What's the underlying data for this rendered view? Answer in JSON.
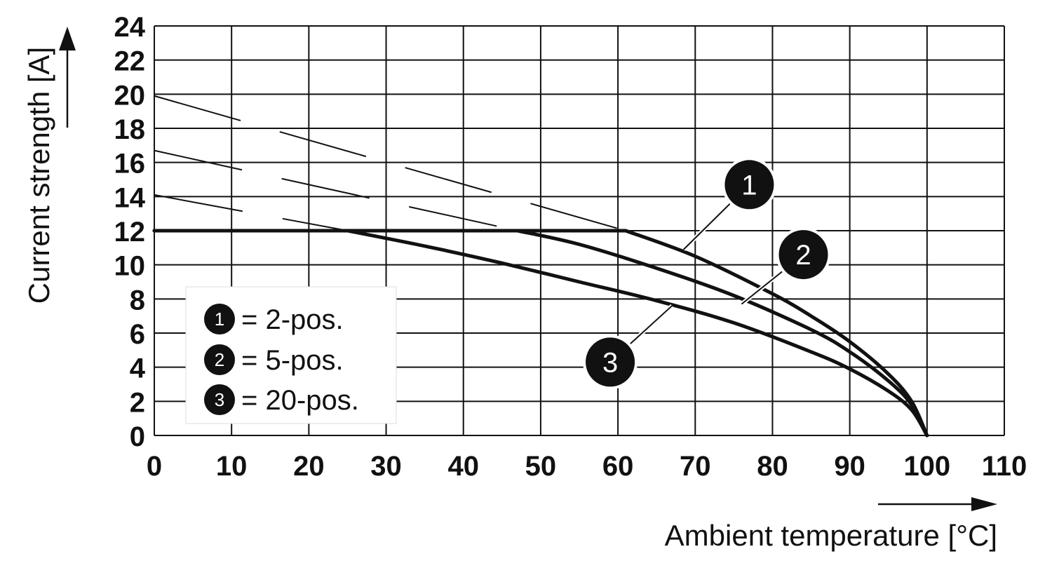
{
  "chart_data": {
    "type": "line",
    "title": "",
    "xlabel": "Ambient temperature [°C]",
    "ylabel": "Current strength [A]",
    "xlim": [
      0,
      110
    ],
    "ylim": [
      0,
      24
    ],
    "x_ticks": [
      "0",
      "10",
      "20",
      "30",
      "40",
      "50",
      "60",
      "70",
      "80",
      "90",
      "100",
      "110"
    ],
    "y_ticks": [
      "0",
      "2",
      "4",
      "6",
      "8",
      "10",
      "12",
      "14",
      "16",
      "18",
      "20",
      "22",
      "24"
    ],
    "grid": true,
    "legend_position": "bottom-left",
    "series": [
      {
        "name": "2-pos.",
        "id": "1",
        "x": [
          0,
          61,
          70,
          80,
          85,
          90,
          95,
          98,
          100
        ],
        "y": [
          12,
          12,
          10.5,
          8.3,
          7.0,
          5.5,
          3.6,
          2.0,
          0
        ]
      },
      {
        "name": "5-pos.",
        "id": "2",
        "x": [
          0,
          47,
          55,
          65,
          75,
          85,
          90,
          95,
          98,
          100
        ],
        "y": [
          12,
          12,
          11.2,
          9.8,
          8.2,
          6.2,
          4.9,
          3.2,
          1.8,
          0
        ]
      },
      {
        "name": "20-pos.",
        "id": "3",
        "x": [
          0,
          25,
          35,
          45,
          55,
          65,
          75,
          85,
          90,
          95,
          98,
          100
        ],
        "y": [
          12,
          12,
          11.1,
          10.1,
          9.0,
          7.9,
          6.6,
          4.9,
          3.9,
          2.6,
          1.5,
          0
        ]
      }
    ],
    "extrapolations": [
      {
        "series": "1",
        "x": [
          0,
          61
        ],
        "y": [
          19.9,
          12
        ]
      },
      {
        "series": "2",
        "x": [
          0,
          47
        ],
        "y": [
          16.7,
          12
        ]
      },
      {
        "series": "3",
        "x": [
          0,
          25
        ],
        "y": [
          14.1,
          12
        ]
      }
    ],
    "callouts": [
      {
        "id": "1",
        "label": "1",
        "point_x": 68.5,
        "point_y": 10.9,
        "badge_x": 77.0,
        "badge_y": 14.7
      },
      {
        "id": "2",
        "label": "2",
        "point_x": 76.0,
        "point_y": 7.7,
        "badge_x": 84.0,
        "badge_y": 10.6
      },
      {
        "id": "3",
        "label": "3",
        "point_x": 67.0,
        "point_y": 7.6,
        "badge_x": 59.0,
        "badge_y": 4.3
      }
    ],
    "legend": [
      {
        "badge": "1",
        "text": "= 2-pos."
      },
      {
        "badge": "2",
        "text": "= 5-pos."
      },
      {
        "badge": "3",
        "text": "= 20-pos."
      }
    ],
    "colors": {
      "line": "#111111",
      "grid": "#111111",
      "legend_bg": "#ffffff"
    }
  }
}
